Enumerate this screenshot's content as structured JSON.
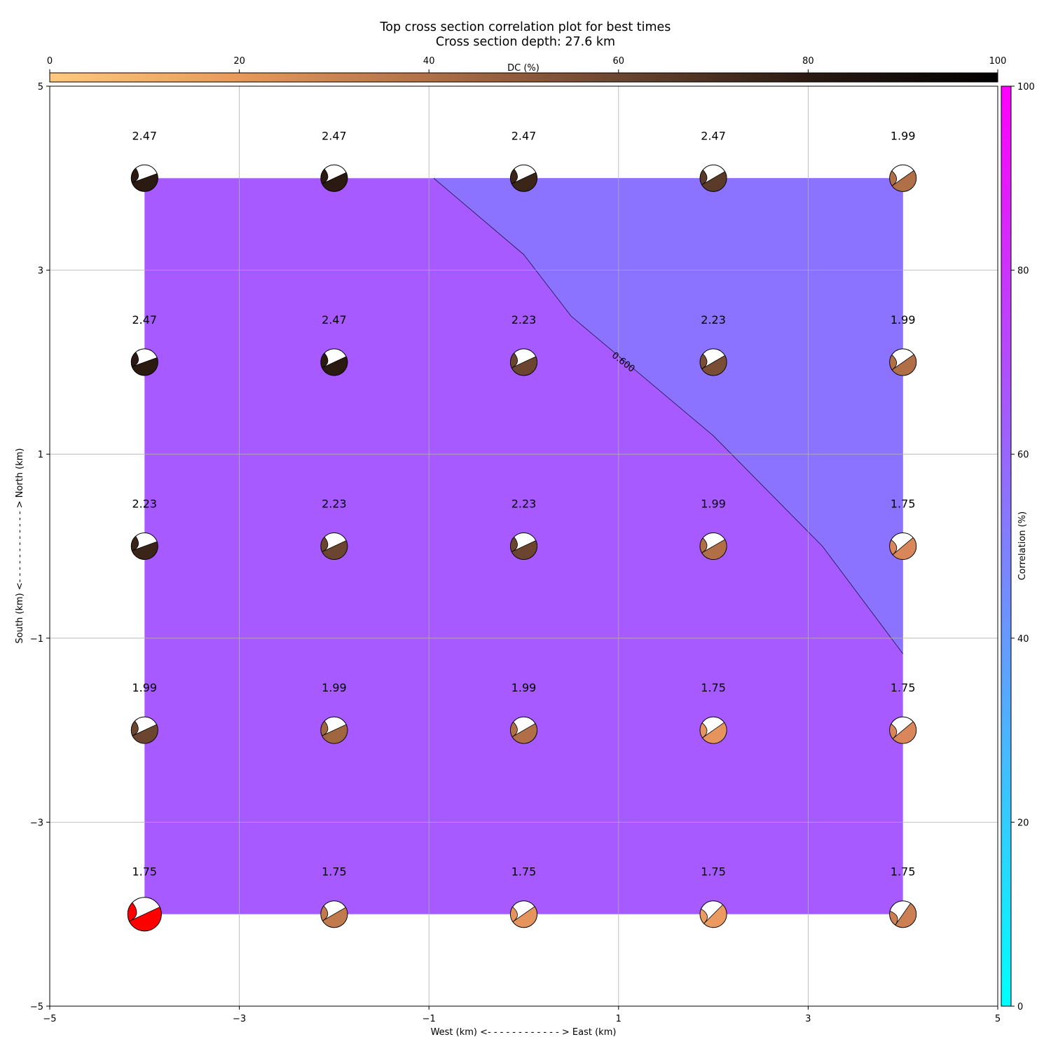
{
  "chart_data": {
    "type": "contour",
    "title": "Top cross section correlation plot for best times",
    "subtitle": "Cross section depth: 27.6 km",
    "xlabel": "West (km) <- - - - - - - - - - - - > East (km)",
    "ylabel": "South (km) <- - - - - - - - - - - - > North (km)",
    "xlim": [
      -5,
      5
    ],
    "ylim": [
      -5,
      5
    ],
    "xticks": [
      -5,
      -3,
      -1,
      1,
      3,
      5
    ],
    "yticks": [
      -5,
      -3,
      -1,
      1,
      3,
      5
    ],
    "xtick_labels": [
      "−5",
      "−3",
      "−1",
      "1",
      "3",
      "5"
    ],
    "ytick_labels": [
      "−5",
      "−3",
      "−1",
      "1",
      "3",
      "5"
    ],
    "grid": true,
    "contour": {
      "level_label": "0.600",
      "region_low_color": "#a65aff",
      "region_high_color": "#8b73ff",
      "boundary": [
        [
          -0.95,
          4.0
        ],
        [
          0.0,
          3.17
        ],
        [
          0.5,
          2.5
        ],
        [
          2.0,
          1.2
        ],
        [
          3.15,
          0.0
        ],
        [
          4.0,
          -1.17
        ]
      ]
    },
    "colorbar_dc": {
      "label": "DC (%)",
      "ticks": [
        "0",
        "20",
        "40",
        "60",
        "80",
        "100"
      ],
      "colormap": "copper_r",
      "stops": [
        "#ffc87f",
        "#e69a5b",
        "#b06f46",
        "#6b4530",
        "#2a1a12",
        "#000000"
      ]
    },
    "colorbar_corr": {
      "label": "Correlation (%)",
      "ticks": [
        "0",
        "20",
        "40",
        "60",
        "80",
        "100"
      ],
      "colormap": "cool",
      "stops": [
        "#00ffff",
        "#ff00ff"
      ]
    },
    "mechanisms": [
      {
        "x": -4,
        "y": 4,
        "label": "2.47",
        "color": "#2a1a12",
        "strike": 20
      },
      {
        "x": -2,
        "y": 4,
        "label": "2.47",
        "color": "#2a1a12",
        "strike": 25
      },
      {
        "x": 0,
        "y": 4,
        "label": "2.47",
        "color": "#3a2518",
        "strike": 25
      },
      {
        "x": 2,
        "y": 4,
        "label": "2.47",
        "color": "#5a3a28",
        "strike": 30
      },
      {
        "x": 4,
        "y": 4,
        "label": "1.99",
        "color": "#b06f46",
        "strike": 35
      },
      {
        "x": -4,
        "y": 2,
        "label": "2.47",
        "color": "#2a1a12",
        "strike": 20
      },
      {
        "x": -2,
        "y": 2,
        "label": "2.47",
        "color": "#2a1a12",
        "strike": 25
      },
      {
        "x": 0,
        "y": 2,
        "label": "2.23",
        "color": "#6b4530",
        "strike": 25
      },
      {
        "x": 2,
        "y": 2,
        "label": "2.23",
        "color": "#7a4e34",
        "strike": 30
      },
      {
        "x": 4,
        "y": 2,
        "label": "1.99",
        "color": "#b06f46",
        "strike": 35
      },
      {
        "x": -4,
        "y": 0,
        "label": "2.23",
        "color": "#3a2518",
        "strike": 20
      },
      {
        "x": -2,
        "y": 0,
        "label": "2.23",
        "color": "#6b4530",
        "strike": 25
      },
      {
        "x": 0,
        "y": 0,
        "label": "2.23",
        "color": "#6b4530",
        "strike": 25
      },
      {
        "x": 2,
        "y": 0,
        "label": "1.99",
        "color": "#b06f46",
        "strike": 30
      },
      {
        "x": 4,
        "y": 0,
        "label": "1.75",
        "color": "#d9875a",
        "strike": 40
      },
      {
        "x": -4,
        "y": -2,
        "label": "1.99",
        "color": "#6b4530",
        "strike": 25
      },
      {
        "x": -2,
        "y": -2,
        "label": "1.99",
        "color": "#a0663f",
        "strike": 25
      },
      {
        "x": 0,
        "y": -2,
        "label": "1.99",
        "color": "#b06f46",
        "strike": 30
      },
      {
        "x": 2,
        "y": -2,
        "label": "1.75",
        "color": "#e6945e",
        "strike": 35
      },
      {
        "x": 4,
        "y": -2,
        "label": "1.75",
        "color": "#d9875a",
        "strike": 40
      },
      {
        "x": -4,
        "y": -4,
        "label": "1.75",
        "color": "#ff0000",
        "strike": 25
      },
      {
        "x": -2,
        "y": -4,
        "label": "1.75",
        "color": "#c07a4c",
        "strike": 30
      },
      {
        "x": 0,
        "y": -4,
        "label": "1.75",
        "color": "#e6945e",
        "strike": 35
      },
      {
        "x": 2,
        "y": -4,
        "label": "1.75",
        "color": "#eb9a62",
        "strike": 45
      },
      {
        "x": 4,
        "y": -4,
        "label": "1.75",
        "color": "#cc7f52",
        "strike": 55
      }
    ]
  }
}
